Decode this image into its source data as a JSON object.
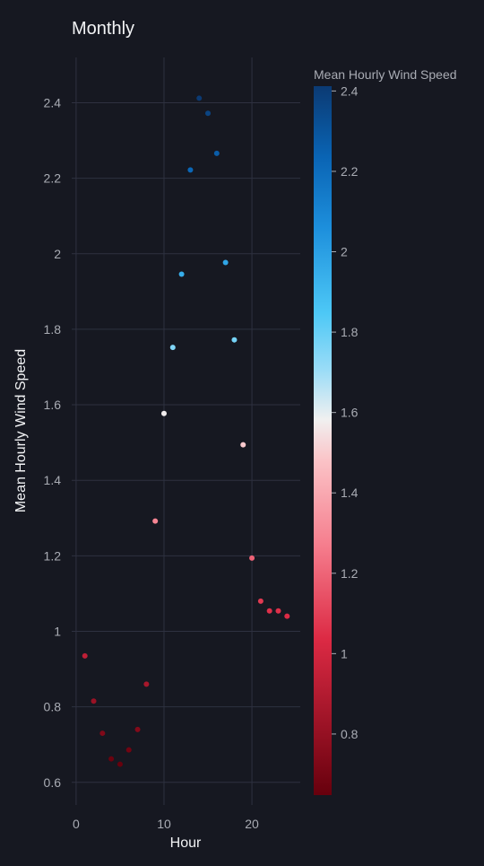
{
  "chart_data": {
    "type": "scatter",
    "title": "Monthly",
    "xlabel": "Hour",
    "ylabel": "Mean Hourly Wind Speed",
    "colorbar_title": "Mean Hourly Wind Speed",
    "xlim": [
      -0.5,
      25.5
    ],
    "ylim": [
      0.54,
      2.52
    ],
    "xticks": [
      0,
      10,
      20
    ],
    "yticks": [
      0.6,
      0.8,
      1,
      1.2,
      1.4,
      1.6,
      1.8,
      2,
      2.2,
      2.4
    ],
    "colorbar_range": [
      0.648,
      2.412
    ],
    "colorbar_ticks": [
      0.8,
      1,
      1.2,
      1.4,
      1.6,
      1.8,
      2,
      2.2,
      2.4
    ],
    "colorscale": [
      [
        0.0,
        "#67000d"
      ],
      [
        0.22,
        "#dc2a44"
      ],
      [
        0.35,
        "#f57c8c"
      ],
      [
        0.47,
        "#fbc2c6"
      ],
      [
        0.53,
        "#f0f0f0"
      ],
      [
        0.6,
        "#9adcf7"
      ],
      [
        0.68,
        "#4dc8f6"
      ],
      [
        0.8,
        "#1d8fdc"
      ],
      [
        0.9,
        "#0a64b4"
      ],
      [
        1.0,
        "#0b3a73"
      ]
    ],
    "grid": true,
    "points": [
      {
        "x": 1,
        "y": 0.935
      },
      {
        "x": 2,
        "y": 0.815
      },
      {
        "x": 3,
        "y": 0.73
      },
      {
        "x": 4,
        "y": 0.662
      },
      {
        "x": 5,
        "y": 0.648
      },
      {
        "x": 6,
        "y": 0.686
      },
      {
        "x": 7,
        "y": 0.74
      },
      {
        "x": 8,
        "y": 0.86
      },
      {
        "x": 9,
        "y": 1.292
      },
      {
        "x": 10,
        "y": 1.577
      },
      {
        "x": 11,
        "y": 1.752
      },
      {
        "x": 12,
        "y": 1.946
      },
      {
        "x": 13,
        "y": 2.222
      },
      {
        "x": 14,
        "y": 2.412
      },
      {
        "x": 15,
        "y": 2.372
      },
      {
        "x": 16,
        "y": 2.266
      },
      {
        "x": 17,
        "y": 1.977
      },
      {
        "x": 18,
        "y": 1.772
      },
      {
        "x": 19,
        "y": 1.494
      },
      {
        "x": 20,
        "y": 1.194
      },
      {
        "x": 21,
        "y": 1.08
      },
      {
        "x": 22,
        "y": 1.054
      },
      {
        "x": 23,
        "y": 1.054
      },
      {
        "x": 24,
        "y": 1.04
      }
    ]
  }
}
